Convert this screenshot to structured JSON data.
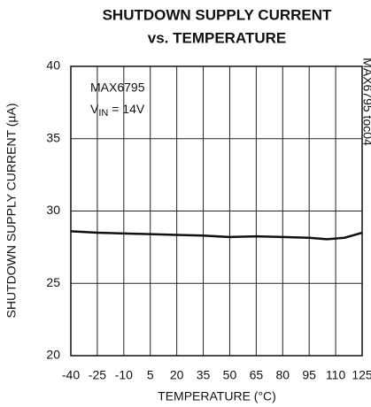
{
  "chart_data": {
    "type": "line",
    "title": [
      "SHUTDOWN SUPPLY CURRENT",
      "vs. TEMPERATURE"
    ],
    "xlabel": "TEMPERATURE (°C)",
    "ylabel": "SHUTDOWN SUPPLY CURRENT (µA)",
    "annotation": "MAX6795",
    "condition": {
      "symbol": "V",
      "subscript": "IN",
      "value": " = 14V"
    },
    "figure_id": "MAX6795 toc04",
    "x": [
      -40,
      -25,
      -10,
      5,
      20,
      35,
      50,
      65,
      80,
      95,
      105,
      115,
      125
    ],
    "series": [
      {
        "name": null,
        "color": "#111111",
        "values": [
          28.6,
          28.5,
          28.45,
          28.4,
          28.35,
          28.3,
          28.2,
          28.25,
          28.2,
          28.15,
          28.05,
          28.15,
          28.5
        ]
      }
    ],
    "xlim": [
      -40,
      125
    ],
    "xticks": [
      -40,
      -25,
      -10,
      5,
      20,
      35,
      50,
      65,
      80,
      95,
      110,
      125
    ],
    "ylim": [
      20,
      40
    ],
    "yticks": [
      20,
      25,
      30,
      35,
      40
    ],
    "grid": true
  }
}
